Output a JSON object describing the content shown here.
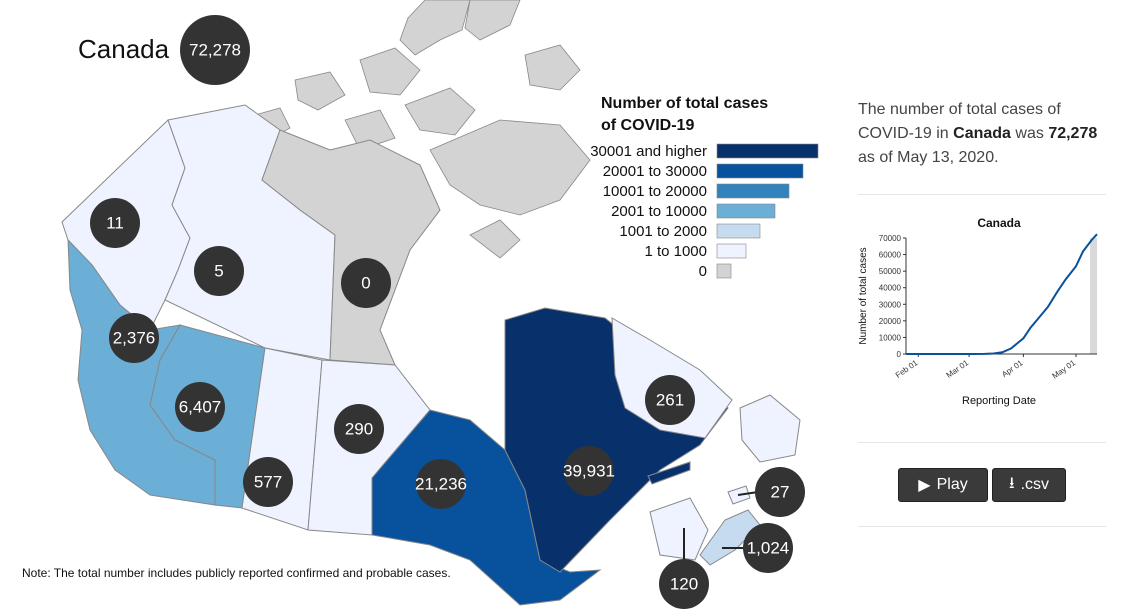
{
  "country": {
    "name": "Canada",
    "total_label": "72,278"
  },
  "legend": {
    "title_line1": "Number of total cases",
    "title_line2": "of COVID-19",
    "items": [
      {
        "label": "30001 and higher",
        "color": "#08306b"
      },
      {
        "label": "20001 to 30000",
        "color": "#08519c"
      },
      {
        "label": "10001 to 20000",
        "color": "#3182bd"
      },
      {
        "label": "2001 to 10000",
        "color": "#6baed6"
      },
      {
        "label": "1001 to 2000",
        "color": "#c6dbef"
      },
      {
        "label": "1 to 1000",
        "color": "#eff3ff"
      },
      {
        "label": "0",
        "color": "#d3d3d3"
      }
    ]
  },
  "regions": [
    {
      "id": "yukon",
      "cases": 11,
      "label": "11",
      "color": "#eff3ff"
    },
    {
      "id": "northwest-territories",
      "cases": 5,
      "label": "5",
      "color": "#eff3ff"
    },
    {
      "id": "nunavut",
      "cases": 0,
      "label": "0",
      "color": "#d3d3d3"
    },
    {
      "id": "british-columbia",
      "cases": 2376,
      "label": "2,376",
      "color": "#6baed6"
    },
    {
      "id": "alberta",
      "cases": 6407,
      "label": "6,407",
      "color": "#6baed6"
    },
    {
      "id": "saskatchewan",
      "cases": 577,
      "label": "577",
      "color": "#eff3ff"
    },
    {
      "id": "manitoba",
      "cases": 290,
      "label": "290",
      "color": "#eff3ff"
    },
    {
      "id": "ontario",
      "cases": 21236,
      "label": "21,236",
      "color": "#08519c"
    },
    {
      "id": "quebec",
      "cases": 39931,
      "label": "39,931",
      "color": "#08306b"
    },
    {
      "id": "newfoundland-and-labrador",
      "cases": 261,
      "label": "261",
      "color": "#eff3ff"
    },
    {
      "id": "prince-edward-island",
      "cases": 27,
      "label": "27",
      "color": "#eff3ff"
    },
    {
      "id": "nova-scotia",
      "cases": 1024,
      "label": "1,024",
      "color": "#c6dbef"
    },
    {
      "id": "new-brunswick",
      "cases": 120,
      "label": "120",
      "color": "#eff3ff"
    }
  ],
  "note": "Note: The total number includes publicly reported confirmed and probable cases.",
  "summary": {
    "prefix": "The number of total cases of COVID-19 in",
    "place": "Canada",
    "middle": "was",
    "value": "72,278",
    "suffix": "as of May 13, 2020."
  },
  "trend_chart": {
    "title": "Canada",
    "xlabel": "Reporting Date",
    "ylabel": "Number of total cases",
    "y_ticks": [
      "0",
      "10000",
      "20000",
      "30000",
      "40000",
      "50000",
      "60000",
      "70000"
    ],
    "x_ticks": [
      "Feb 01",
      "Mar 01",
      "Apr 01",
      "May 01"
    ],
    "line_color": "#08519c"
  },
  "chart_data": {
    "type": "line",
    "title": "Canada",
    "xlabel": "Reporting Date",
    "ylabel": "Number of total cases",
    "ylim": [
      0,
      70000
    ],
    "x": [
      "2020-01-25",
      "2020-02-01",
      "2020-02-15",
      "2020-03-01",
      "2020-03-10",
      "2020-03-15",
      "2020-03-20",
      "2020-03-25",
      "2020-04-01",
      "2020-04-05",
      "2020-04-10",
      "2020-04-15",
      "2020-04-20",
      "2020-04-25",
      "2020-05-01",
      "2020-05-05",
      "2020-05-10",
      "2020-05-13"
    ],
    "series": [
      {
        "values": [
          0,
          4,
          7,
          20,
          90,
          300,
          1000,
          3400,
          9500,
          15800,
          22100,
          28400,
          37000,
          44900,
          53000,
          61900,
          68800,
          72278
        ]
      }
    ]
  },
  "buttons": {
    "play": "Play",
    "csv": ".csv"
  }
}
